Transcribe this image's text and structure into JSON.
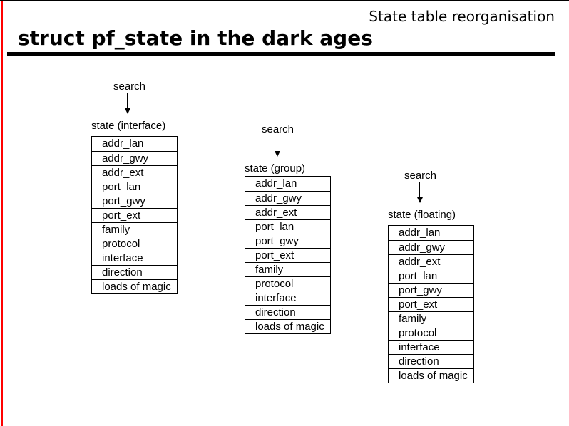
{
  "slide": {
    "title": "State table reorganisation",
    "heading": "struct pf_state in the dark ages"
  },
  "diagram": {
    "search_label": "search",
    "field_rows": [
      "addr_lan",
      "addr_gwy",
      "addr_ext",
      "port_lan",
      "port_gwy",
      "port_ext",
      "family",
      "protocol",
      "interface",
      "direction",
      "loads of magic"
    ],
    "tables": [
      {
        "label": "state (interface)"
      },
      {
        "label": "state (group)"
      },
      {
        "label": "state (floating)"
      }
    ]
  },
  "colors": {
    "left_border_red": "#ff0000",
    "rule_black": "#000000"
  }
}
